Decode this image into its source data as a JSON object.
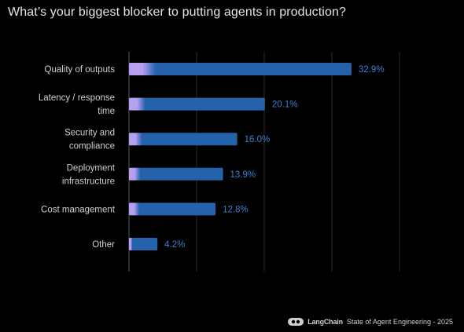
{
  "title": "What’s your biggest blocker to putting agents in production?",
  "footer": {
    "brand": "LangChain",
    "caption": "State of Agent Engineering - 2025",
    "logo_icon": "langchain-logo-icon"
  },
  "colors": {
    "background": "#000000",
    "bar": "#2463ac",
    "bar_highlight": "#b8a0f0",
    "value_text": "#3f7fd0",
    "grid": "#2a2a2a"
  },
  "chart_data": {
    "type": "bar",
    "orientation": "horizontal",
    "title": "What’s your biggest blocker to putting agents in production?",
    "categories": [
      [
        "Quality of outputs"
      ],
      [
        "Latency / response",
        "time"
      ],
      [
        "Security and",
        "compliance"
      ],
      [
        "Deployment",
        "infrastructure"
      ],
      [
        "Cost management"
      ],
      [
        "Other"
      ]
    ],
    "values": [
      32.9,
      20.1,
      16.0,
      13.9,
      12.8,
      4.2
    ],
    "value_labels": [
      "32.9%",
      "20.1%",
      "16.0%",
      "13.9%",
      "12.8%",
      "4.2%"
    ],
    "xlim": [
      0,
      40
    ],
    "grid": true,
    "legend": "none"
  }
}
